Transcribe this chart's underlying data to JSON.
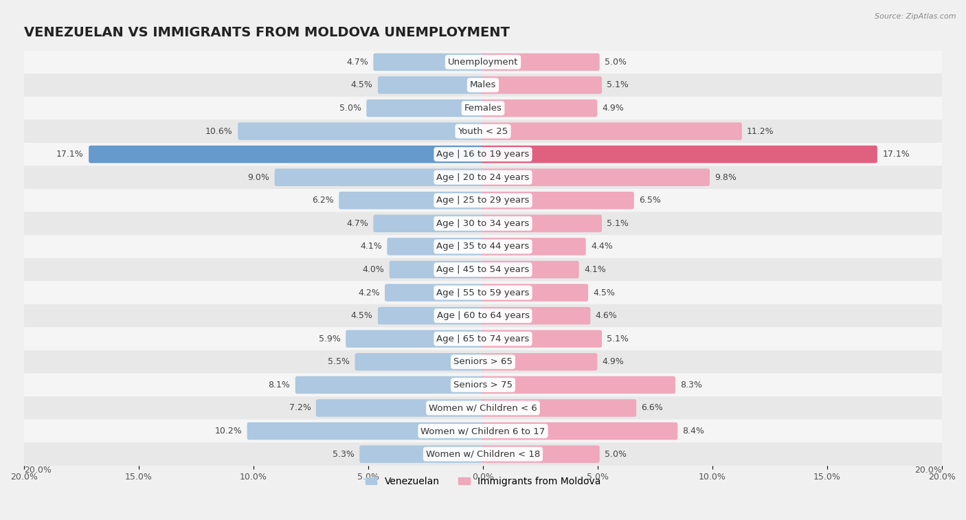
{
  "title": "VENEZUELAN VS IMMIGRANTS FROM MOLDOVA UNEMPLOYMENT",
  "source": "Source: ZipAtlas.com",
  "categories": [
    "Unemployment",
    "Males",
    "Females",
    "Youth < 25",
    "Age | 16 to 19 years",
    "Age | 20 to 24 years",
    "Age | 25 to 29 years",
    "Age | 30 to 34 years",
    "Age | 35 to 44 years",
    "Age | 45 to 54 years",
    "Age | 55 to 59 years",
    "Age | 60 to 64 years",
    "Age | 65 to 74 years",
    "Seniors > 65",
    "Seniors > 75",
    "Women w/ Children < 6",
    "Women w/ Children 6 to 17",
    "Women w/ Children < 18"
  ],
  "venezuelan": [
    4.7,
    4.5,
    5.0,
    10.6,
    17.1,
    9.0,
    6.2,
    4.7,
    4.1,
    4.0,
    4.2,
    4.5,
    5.9,
    5.5,
    8.1,
    7.2,
    10.2,
    5.3
  ],
  "moldova": [
    5.0,
    5.1,
    4.9,
    11.2,
    17.1,
    9.8,
    6.5,
    5.1,
    4.4,
    4.1,
    4.5,
    4.6,
    5.1,
    4.9,
    8.3,
    6.6,
    8.4,
    5.0
  ],
  "venezuelan_color": "#adc8e0",
  "moldova_color": "#f0a8bc",
  "highlight_venezuelan_color": "#6699cc",
  "highlight_moldova_color": "#e06080",
  "axis_max": 20.0,
  "bg_white": "#ffffff",
  "bg_gray": "#ebebeb",
  "row_bg_white": "#f8f8f8",
  "row_bg_gray": "#e8e8e8",
  "legend_venezuelan": "Venezuelan",
  "legend_moldova": "Immigrants from Moldova",
  "title_fontsize": 14,
  "label_fontsize": 9.5,
  "tick_fontsize": 9,
  "value_fontsize": 9
}
